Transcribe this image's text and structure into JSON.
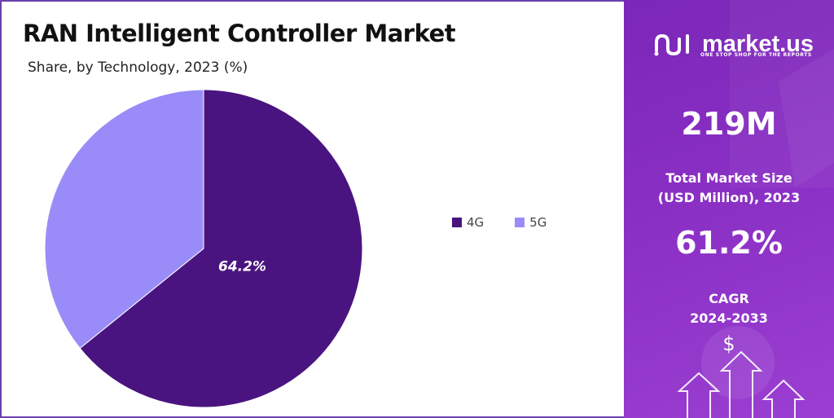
{
  "chart_data": {
    "type": "pie",
    "title": "RAN Intelligent Controller Market",
    "subtitle": "Share, by Technology, 2023 (%)",
    "slices": [
      {
        "name": "4G",
        "value": 64.2,
        "label": "64.2%",
        "color": "#4a1480"
      },
      {
        "name": "5G",
        "value": 35.8,
        "label": "",
        "color": "#9a8cf8"
      }
    ],
    "legend_position": "right"
  },
  "sidebar": {
    "brand": "market.us",
    "tagline": "ONE STOP SHOP FOR THE REPORTS",
    "market_size_value": "219M",
    "market_size_label_line1": "Total Market Size",
    "market_size_label_line2": "(USD Million), 2023",
    "cagr_value": "61.2%",
    "cagr_label_line1": "CAGR",
    "cagr_label_line2": "2024-2033",
    "currency_symbol": "$"
  },
  "colors": {
    "accent": "#8a2fc4",
    "border": "#6a3fb0"
  }
}
